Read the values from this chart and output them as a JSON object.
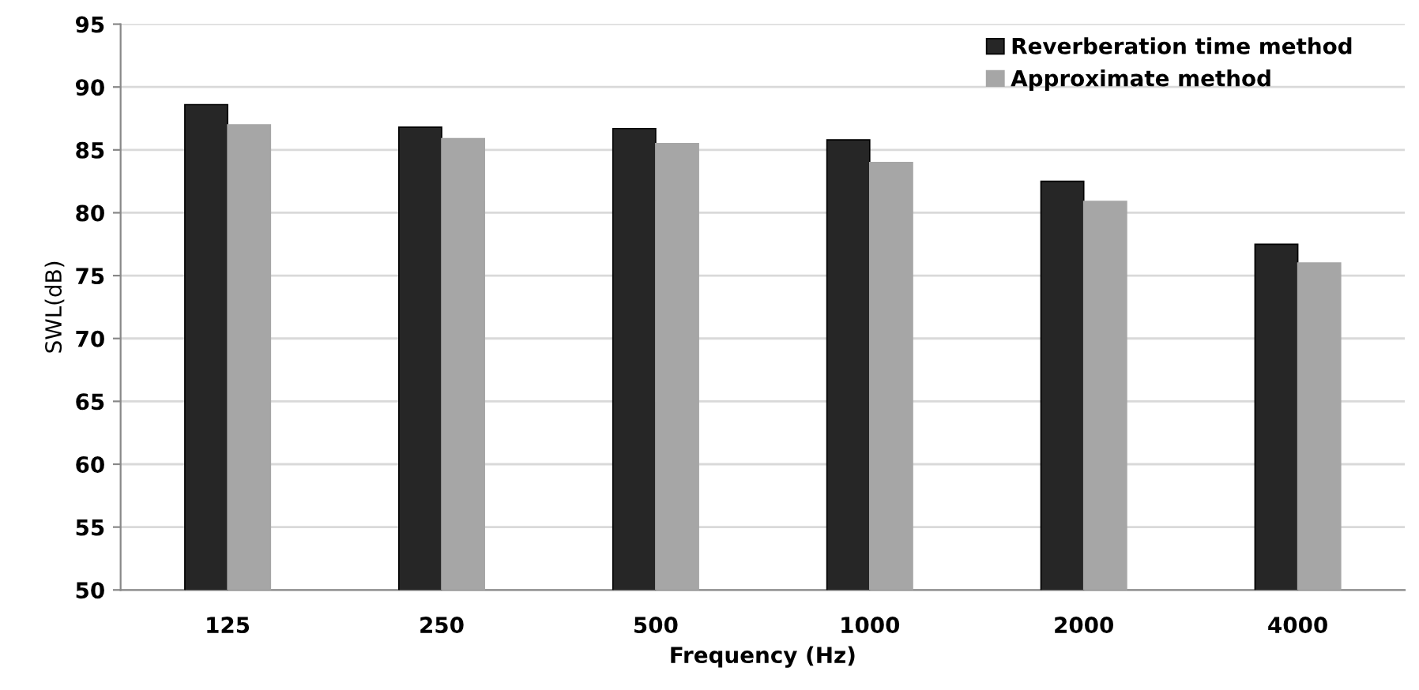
{
  "chart_data": {
    "type": "bar",
    "xlabel": "Frequency (Hz)",
    "ylabel": "SWL(dB)",
    "categories": [
      "125",
      "250",
      "500",
      "1000",
      "2000",
      "4000"
    ],
    "series": [
      {
        "name": "Reverberation time method",
        "color": "#262626",
        "values": [
          88.6,
          86.8,
          86.7,
          85.8,
          82.5,
          77.5
        ]
      },
      {
        "name": "Approximate method",
        "color": "#a6a6a6",
        "values": [
          87.0,
          85.9,
          85.5,
          84.0,
          80.9,
          76.0
        ]
      }
    ],
    "ylim": [
      50,
      95
    ],
    "yticks": [
      50,
      55,
      60,
      65,
      70,
      75,
      80,
      85,
      90,
      95
    ],
    "grid": "y",
    "legend": "top right"
  }
}
